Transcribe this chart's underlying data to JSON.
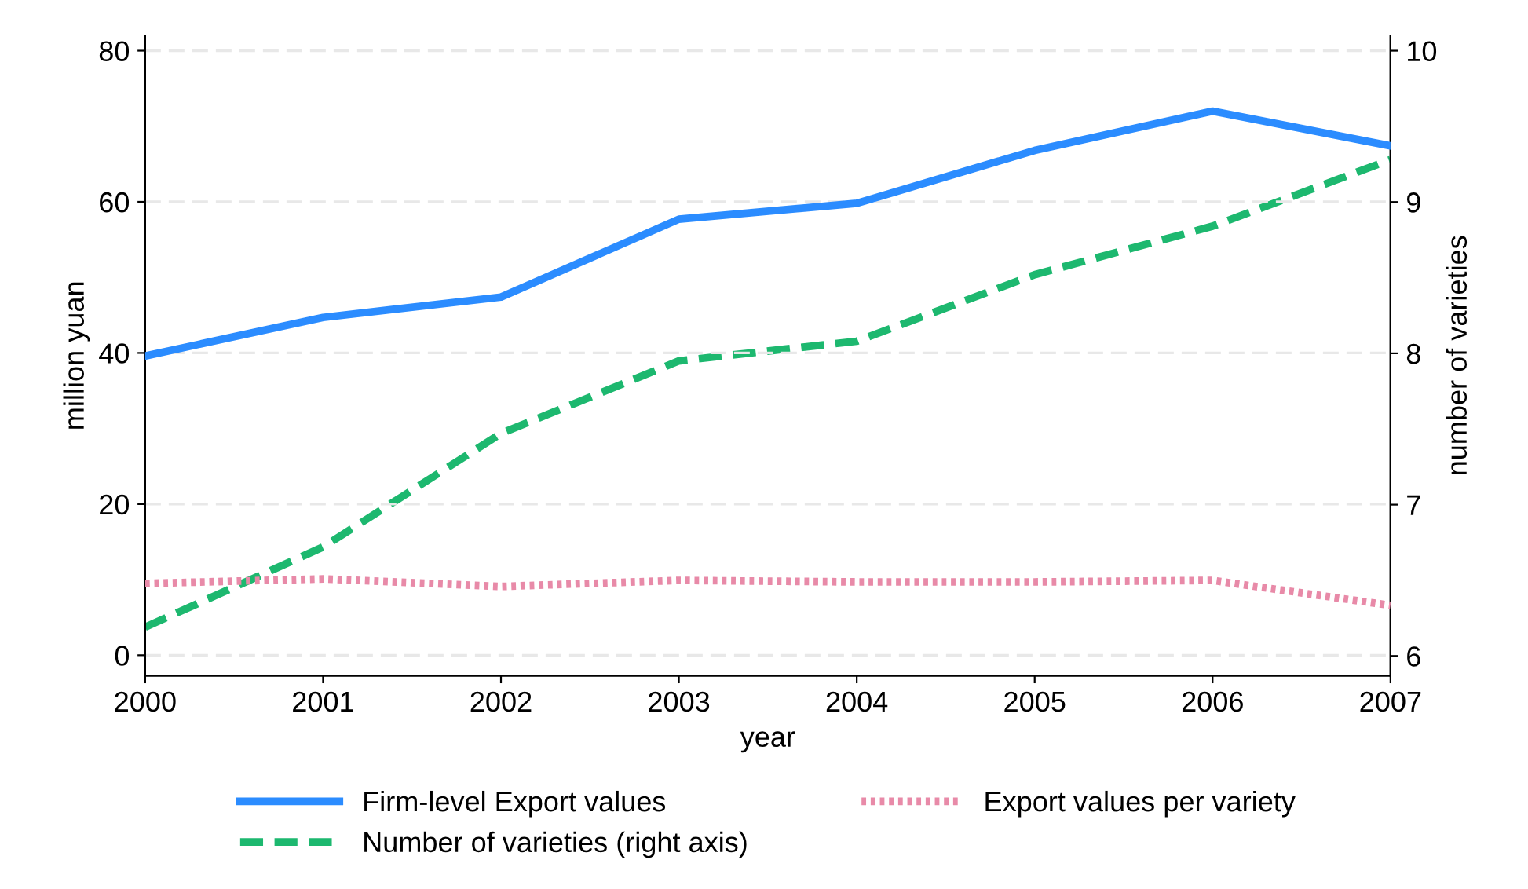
{
  "chart_data": {
    "type": "line",
    "xlabel": "year",
    "ylabel": "million yuan",
    "y2label": "number of varieties",
    "x": [
      2000,
      2001,
      2002,
      2003,
      2004,
      2005,
      2006,
      2007
    ],
    "xlim": [
      2000,
      2007
    ],
    "xticks": [
      2000,
      2001,
      2002,
      2003,
      2004,
      2005,
      2006,
      2007
    ],
    "ylim": [
      -2.7,
      82
    ],
    "yticks": [
      0,
      20,
      40,
      60,
      80
    ],
    "y2lim": [
      5.87,
      10.1
    ],
    "y2ticks": [
      6,
      7,
      8,
      9,
      10
    ],
    "grid": "y",
    "legend": "bottom",
    "series": [
      {
        "name": "Firm-level Export values",
        "color": "#2b8cff",
        "line_style": "solid",
        "values": [
          39.6,
          44.7,
          47.4,
          57.7,
          59.8,
          66.8,
          72.0,
          67.4
        ]
      },
      {
        "name": "Number of varieties (right axis)",
        "color": "#1db86f",
        "line_style": "dashed",
        "axis": "y2",
        "values": [
          6.19,
          6.72,
          7.47,
          7.95,
          8.08,
          8.52,
          8.84,
          9.28
        ]
      },
      {
        "name": "Export values per variety",
        "color": "#e88aa8",
        "line_style": "dotted",
        "values": [
          9.5,
          10.1,
          9.1,
          9.9,
          9.7,
          9.7,
          9.9,
          6.6
        ]
      }
    ]
  }
}
